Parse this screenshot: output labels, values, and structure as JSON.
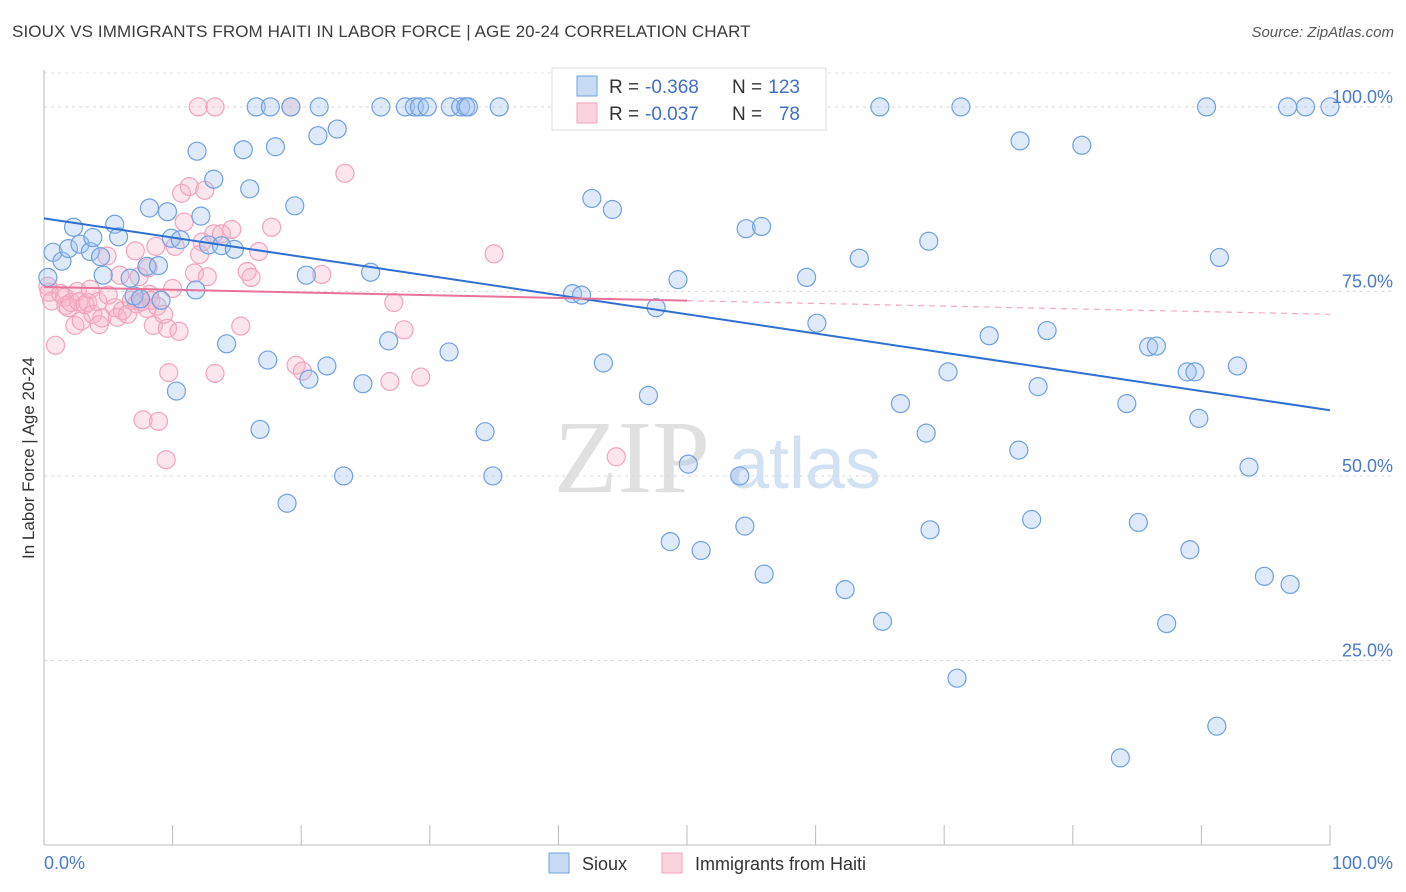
{
  "title": "SIOUX VS IMMIGRANTS FROM HAITI IN LABOR FORCE | AGE 20-24 CORRELATION CHART",
  "source": "Source: ZipAtlas.com",
  "watermark": {
    "zip": "ZIP",
    "atlas": "atlas"
  },
  "chart_data": {
    "type": "scatter",
    "xlabel": "",
    "ylabel": "In Labor Force | Age 20-24",
    "xlim": [
      0,
      100
    ],
    "ylim": [
      0,
      105
    ],
    "x_tick_labels": {
      "left": "0.0%",
      "right": "100.0%"
    },
    "y_ticks": [
      {
        "value": 25,
        "label": "25.0%"
      },
      {
        "value": 50,
        "label": "50.0%"
      },
      {
        "value": 75,
        "label": "75.0%"
      },
      {
        "value": 100,
        "label": "100.0%"
      }
    ],
    "grid": true,
    "legend_placement": "top-center",
    "series": [
      {
        "name": "Sioux",
        "color": "#6fa0e0",
        "line_color": "#2f6fd0",
        "R": "-0.368",
        "N": "123",
        "trend": {
          "x": [
            0,
            100
          ],
          "y": [
            84.9,
            58.9
          ],
          "solid_until": 100
        },
        "points": [
          [
            0.3,
            76.9
          ],
          [
            0.7,
            80.3
          ],
          [
            1.4,
            79.1
          ],
          [
            1.9,
            80.8
          ],
          [
            2.3,
            83.7
          ],
          [
            2.8,
            81.4
          ],
          [
            3.6,
            80.4
          ],
          [
            3.8,
            82.3
          ],
          [
            4.4,
            79.7
          ],
          [
            4.6,
            77.2
          ],
          [
            5.5,
            84.1
          ],
          [
            5.8,
            82.4
          ],
          [
            6.7,
            76.8
          ],
          [
            7.0,
            74.4
          ],
          [
            7.5,
            74.0
          ],
          [
            8.0,
            78.4
          ],
          [
            8.2,
            86.3
          ],
          [
            8.9,
            78.5
          ],
          [
            9.1,
            73.8
          ],
          [
            9.6,
            85.8
          ],
          [
            9.9,
            82.2
          ],
          [
            10.3,
            61.5
          ],
          [
            10.6,
            82.0
          ],
          [
            11.8,
            75.2
          ],
          [
            11.9,
            94.0
          ],
          [
            12.2,
            85.2
          ],
          [
            12.8,
            81.3
          ],
          [
            13.2,
            90.2
          ],
          [
            13.8,
            81.2
          ],
          [
            14.2,
            67.9
          ],
          [
            14.8,
            80.7
          ],
          [
            15.5,
            94.2
          ],
          [
            16.0,
            88.9
          ],
          [
            16.5,
            100.0
          ],
          [
            16.8,
            56.3
          ],
          [
            17.4,
            65.7
          ],
          [
            17.6,
            100.0
          ],
          [
            18.0,
            94.6
          ],
          [
            18.9,
            46.3
          ],
          [
            19.2,
            100.0
          ],
          [
            19.5,
            86.6
          ],
          [
            20.4,
            77.2
          ],
          [
            20.6,
            63.1
          ],
          [
            21.3,
            96.1
          ],
          [
            21.4,
            100.0
          ],
          [
            22.0,
            64.9
          ],
          [
            22.8,
            97.0
          ],
          [
            23.3,
            50.0
          ],
          [
            24.8,
            62.5
          ],
          [
            25.4,
            77.6
          ],
          [
            26.2,
            100.0
          ],
          [
            26.8,
            68.3
          ],
          [
            28.1,
            100.0
          ],
          [
            28.8,
            100.0
          ],
          [
            29.2,
            100.0
          ],
          [
            29.8,
            100.0
          ],
          [
            31.5,
            66.8
          ],
          [
            31.6,
            100.0
          ],
          [
            32.4,
            100.0
          ],
          [
            32.8,
            100.0
          ],
          [
            33.0,
            100.0
          ],
          [
            34.3,
            56.0
          ],
          [
            34.9,
            50.0
          ],
          [
            35.4,
            100.0
          ],
          [
            41.1,
            74.7
          ],
          [
            41.8,
            74.5
          ],
          [
            42.6,
            87.6
          ],
          [
            43.3,
            100.0
          ],
          [
            43.5,
            65.3
          ],
          [
            44.2,
            86.1
          ],
          [
            45.4,
            100.0
          ],
          [
            47.0,
            60.9
          ],
          [
            47.6,
            72.8
          ],
          [
            48.7,
            41.1
          ],
          [
            49.3,
            76.6
          ],
          [
            50.1,
            51.6
          ],
          [
            51.1,
            39.9
          ],
          [
            54.1,
            50.0
          ],
          [
            54.2,
            100.0
          ],
          [
            54.5,
            43.2
          ],
          [
            54.6,
            83.5
          ],
          [
            55.8,
            83.8
          ],
          [
            56.0,
            36.7
          ],
          [
            59.3,
            76.9
          ],
          [
            60.1,
            70.7
          ],
          [
            62.3,
            34.6
          ],
          [
            63.4,
            79.5
          ],
          [
            65.0,
            100.0
          ],
          [
            65.2,
            30.3
          ],
          [
            66.6,
            59.8
          ],
          [
            68.6,
            55.8
          ],
          [
            68.8,
            81.8
          ],
          [
            68.9,
            42.7
          ],
          [
            70.3,
            64.1
          ],
          [
            71.0,
            22.6
          ],
          [
            71.3,
            100.0
          ],
          [
            73.5,
            69.0
          ],
          [
            75.8,
            53.5
          ],
          [
            75.9,
            95.4
          ],
          [
            76.8,
            44.1
          ],
          [
            77.3,
            62.1
          ],
          [
            78.0,
            69.7
          ],
          [
            80.7,
            94.8
          ],
          [
            83.7,
            11.8
          ],
          [
            84.2,
            59.8
          ],
          [
            85.1,
            43.7
          ],
          [
            85.9,
            67.5
          ],
          [
            86.5,
            67.6
          ],
          [
            87.3,
            30.0
          ],
          [
            88.9,
            64.1
          ],
          [
            89.1,
            40.0
          ],
          [
            89.5,
            64.1
          ],
          [
            89.8,
            57.8
          ],
          [
            90.4,
            100.0
          ],
          [
            91.2,
            16.1
          ],
          [
            91.4,
            79.6
          ],
          [
            92.8,
            64.9
          ],
          [
            93.7,
            51.2
          ],
          [
            94.9,
            36.4
          ],
          [
            96.7,
            100.0
          ],
          [
            96.9,
            35.3
          ],
          [
            98.1,
            100.0
          ],
          [
            100.0,
            100.0
          ]
        ]
      },
      {
        "name": "Immigrants from Haiti",
        "color": "#f2a3bc",
        "line_color": "#e8739a",
        "R": "-0.037",
        "N": "78",
        "trend": {
          "x": [
            0,
            100
          ],
          "y": [
            75.6,
            71.9
          ],
          "solid_until": 50
        },
        "points": [
          [
            0.3,
            75.7
          ],
          [
            0.4,
            74.9
          ],
          [
            0.6,
            73.7
          ],
          [
            0.9,
            67.7
          ],
          [
            1.3,
            74.7
          ],
          [
            1.6,
            74.2
          ],
          [
            1.7,
            73.1
          ],
          [
            1.9,
            72.8
          ],
          [
            2.1,
            73.5
          ],
          [
            2.4,
            70.4
          ],
          [
            2.6,
            75.0
          ],
          [
            2.7,
            73.6
          ],
          [
            2.9,
            71.0
          ],
          [
            3.2,
            73.2
          ],
          [
            3.4,
            73.5
          ],
          [
            3.6,
            75.3
          ],
          [
            3.8,
            71.9
          ],
          [
            4.2,
            73.6
          ],
          [
            4.3,
            70.5
          ],
          [
            4.5,
            71.4
          ],
          [
            4.9,
            79.8
          ],
          [
            5.0,
            74.5
          ],
          [
            5.5,
            72.8
          ],
          [
            5.7,
            71.5
          ],
          [
            5.9,
            77.2
          ],
          [
            6.1,
            72.4
          ],
          [
            6.5,
            71.9
          ],
          [
            6.8,
            73.8
          ],
          [
            7.1,
            80.5
          ],
          [
            7.2,
            73.3
          ],
          [
            7.4,
            77.0
          ],
          [
            7.6,
            73.6
          ],
          [
            7.7,
            57.6
          ],
          [
            8.0,
            72.7
          ],
          [
            8.1,
            78.2
          ],
          [
            8.2,
            74.6
          ],
          [
            8.3,
            73.8
          ],
          [
            8.5,
            70.4
          ],
          [
            8.7,
            81.1
          ],
          [
            8.8,
            73.0
          ],
          [
            8.9,
            57.4
          ],
          [
            9.3,
            71.9
          ],
          [
            9.5,
            52.2
          ],
          [
            9.6,
            70.0
          ],
          [
            9.7,
            64.0
          ],
          [
            10.0,
            75.4
          ],
          [
            10.2,
            81.1
          ],
          [
            10.5,
            69.6
          ],
          [
            10.7,
            88.3
          ],
          [
            10.9,
            84.4
          ],
          [
            11.3,
            89.2
          ],
          [
            11.7,
            77.5
          ],
          [
            12.1,
            80.0
          ],
          [
            12.3,
            81.7
          ],
          [
            12.5,
            88.7
          ],
          [
            12.7,
            77.0
          ],
          [
            13.2,
            82.8
          ],
          [
            13.3,
            63.9
          ],
          [
            13.8,
            82.8
          ],
          [
            14.6,
            83.4
          ],
          [
            15.3,
            70.3
          ],
          [
            15.8,
            77.7
          ],
          [
            16.1,
            76.9
          ],
          [
            16.7,
            80.4
          ],
          [
            17.7,
            83.7
          ],
          [
            19.2,
            100.0
          ],
          [
            19.6,
            65.0
          ],
          [
            20.1,
            64.2
          ],
          [
            21.6,
            77.3
          ],
          [
            23.4,
            91.0
          ],
          [
            26.9,
            62.8
          ],
          [
            27.2,
            73.5
          ],
          [
            28.0,
            69.8
          ],
          [
            29.3,
            63.4
          ],
          [
            35.0,
            80.1
          ],
          [
            44.5,
            52.6
          ],
          [
            12.0,
            100.0
          ],
          [
            13.3,
            100.0
          ]
        ]
      }
    ]
  }
}
